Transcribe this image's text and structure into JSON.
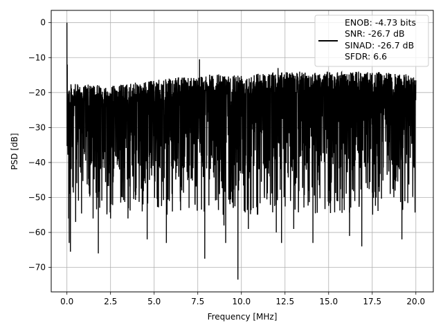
{
  "chart_data": {
    "type": "line",
    "title": "",
    "xlabel": "Frequency [MHz]",
    "ylabel": "PSD [dB]",
    "xlim": [
      -0.9,
      21.0
    ],
    "ylim": [
      -77,
      3.5
    ],
    "x_ticks": [
      0.0,
      2.5,
      5.0,
      7.5,
      10.0,
      12.5,
      15.0,
      17.5,
      20.0
    ],
    "x_tick_labels": [
      "0.0",
      "2.5",
      "5.0",
      "7.5",
      "10.0",
      "12.5",
      "15.0",
      "17.5",
      "20.0"
    ],
    "y_ticks": [
      0,
      -10,
      -20,
      -30,
      -40,
      -50,
      -60,
      -70
    ],
    "y_tick_labels": [
      "0",
      "−10",
      "−20",
      "−30",
      "−40",
      "−50",
      "−60",
      "−70"
    ],
    "grid": true,
    "legend_position": "upper right",
    "legend_lines": [
      "ENOB: -4.73 bits",
      "SNR: -26.7 dB",
      "SINAD: -26.7 dB",
      "SFDR: 6.6"
    ],
    "series": [
      {
        "color": "#000000",
        "description": "noisy power spectral density spanning 0 to 20 MHz",
        "x_range": [
          0,
          20
        ],
        "peak": {
          "x": 0.0,
          "y": 0
        },
        "spurs": [
          {
            "x": 0.02,
            "y": -12
          },
          {
            "x": 7.6,
            "y": -10.5
          },
          {
            "x": 12.1,
            "y": -13
          }
        ],
        "upper_envelope": [
          {
            "x": 0.2,
            "y": -17.5
          },
          {
            "x": 2.5,
            "y": -18
          },
          {
            "x": 5.0,
            "y": -16.5
          },
          {
            "x": 7.5,
            "y": -15
          },
          {
            "x": 10.0,
            "y": -14.5
          },
          {
            "x": 12.5,
            "y": -14
          },
          {
            "x": 15.0,
            "y": -14
          },
          {
            "x": 17.5,
            "y": -14
          },
          {
            "x": 20.0,
            "y": -15
          }
        ],
        "dense_band": [
          -42,
          -20
        ],
        "deep_nulls": [
          {
            "x": 0.1,
            "y": -56
          },
          {
            "x": 0.13,
            "y": -63
          },
          {
            "x": 0.2,
            "y": -65.5
          },
          {
            "x": 0.5,
            "y": -57
          },
          {
            "x": 1.5,
            "y": -56
          },
          {
            "x": 1.8,
            "y": -66
          },
          {
            "x": 2.5,
            "y": -56
          },
          {
            "x": 3.5,
            "y": -56
          },
          {
            "x": 4.6,
            "y": -62
          },
          {
            "x": 5.7,
            "y": -63
          },
          {
            "x": 7.0,
            "y": -53
          },
          {
            "x": 7.9,
            "y": -67.5
          },
          {
            "x": 9.0,
            "y": -58
          },
          {
            "x": 9.1,
            "y": -63
          },
          {
            "x": 9.8,
            "y": -73.5
          },
          {
            "x": 10.4,
            "y": -59
          },
          {
            "x": 12.0,
            "y": -60
          },
          {
            "x": 12.3,
            "y": -63
          },
          {
            "x": 13.0,
            "y": -59
          },
          {
            "x": 14.1,
            "y": -63
          },
          {
            "x": 16.2,
            "y": -61
          },
          {
            "x": 16.9,
            "y": -64
          },
          {
            "x": 19.2,
            "y": -62
          }
        ]
      }
    ]
  }
}
